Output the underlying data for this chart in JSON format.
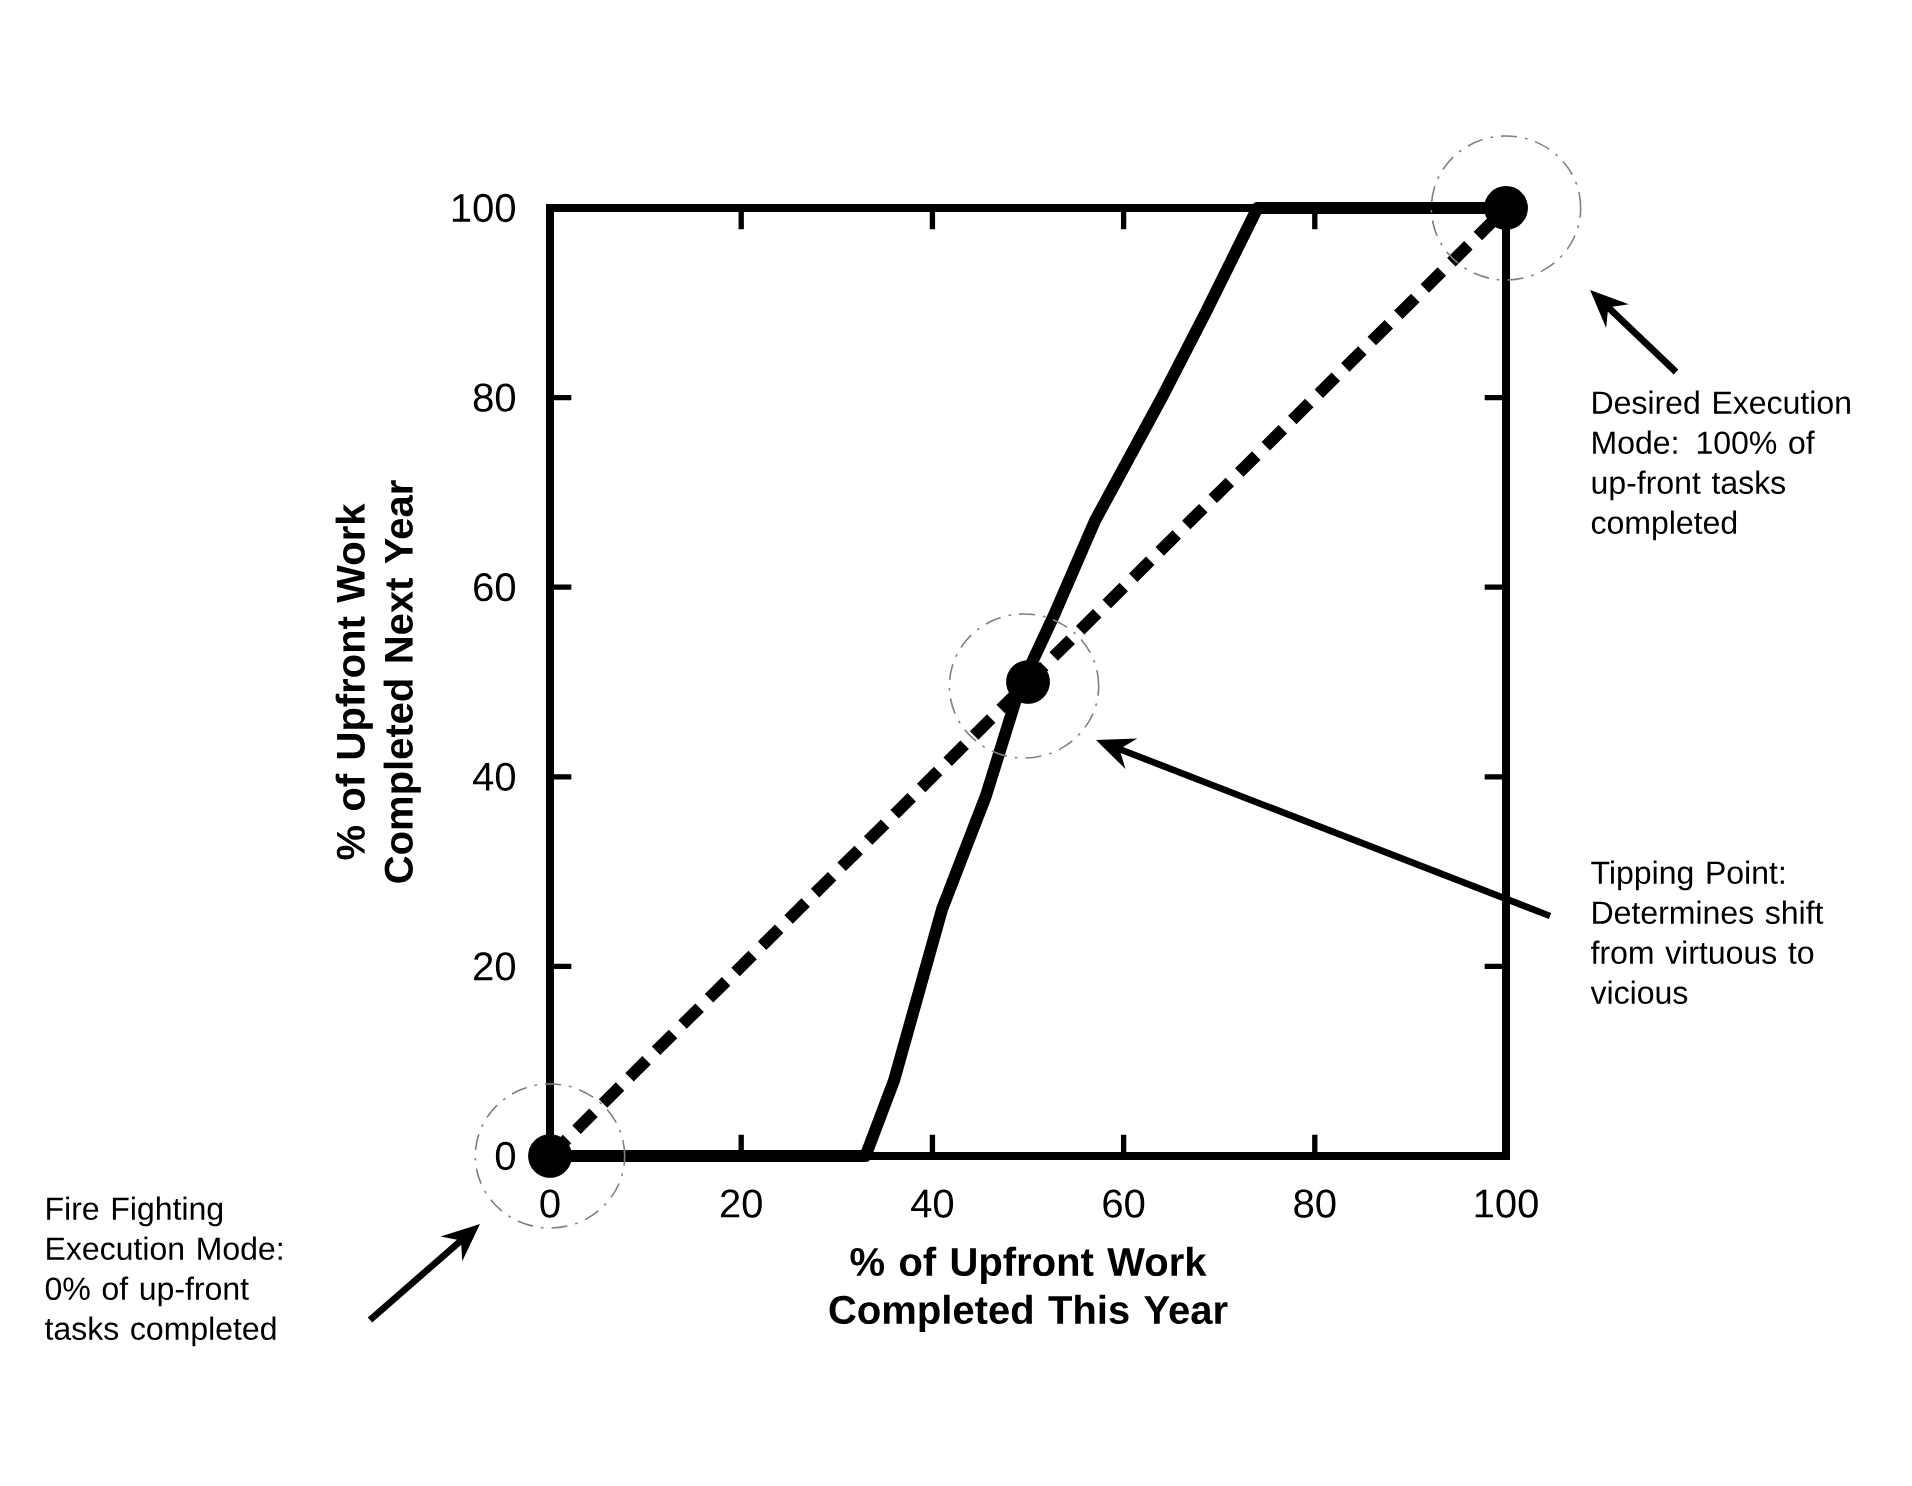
{
  "chart_data": {
    "type": "line",
    "xlabel": "% of Upfront Work Completed This Year",
    "ylabel": "% of Upfront Work Completed Next Year",
    "xlim": [
      0,
      100
    ],
    "ylim": [
      0,
      100
    ],
    "xticks": [
      0,
      20,
      40,
      60,
      80,
      100
    ],
    "yticks": [
      0,
      20,
      40,
      60,
      80,
      100
    ],
    "series": [
      {
        "color": "#000000",
        "line_style": "solid",
        "x": [
          0,
          33,
          36,
          41,
          45.6,
          49,
          52.7,
          57,
          64,
          68.6,
          74,
          100
        ],
        "values": [
          0,
          0,
          8,
          26,
          38,
          49,
          57,
          67,
          80,
          89,
          100,
          100
        ]
      },
      {
        "color": "#000000",
        "line_style": "dashed",
        "x": [
          0,
          100
        ],
        "values": [
          0,
          100
        ]
      },
      {
        "type": "scatter",
        "color": "#000000",
        "x": [
          0,
          50,
          100
        ],
        "values": [
          0,
          50,
          100
        ]
      }
    ],
    "annotations": [
      "Fire Fighting Execution Mode: 0% of up-front tasks completed",
      "Tipping Point: Determines shift from virtuous to vicious",
      "Desired Execution Mode: 100% of up-front tasks completed"
    ]
  }
}
